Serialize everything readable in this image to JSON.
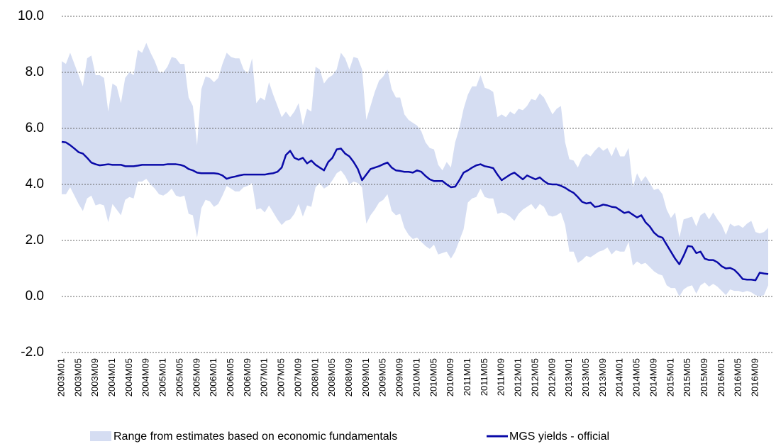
{
  "chart_data": {
    "type": "line",
    "categories": [
      "2003M01",
      null,
      null,
      null,
      "2003M05",
      null,
      null,
      null,
      "2003M09",
      null,
      null,
      null,
      "2004M01",
      null,
      null,
      null,
      "2004M05",
      null,
      null,
      null,
      "2004M09",
      null,
      null,
      null,
      "2005M01",
      null,
      null,
      null,
      "2005M05",
      null,
      null,
      null,
      "2005M09",
      null,
      null,
      null,
      "2006M01",
      null,
      null,
      null,
      "2006M05",
      null,
      null,
      null,
      "2006M09",
      null,
      null,
      null,
      "2007M01",
      null,
      null,
      null,
      "2007M05",
      null,
      null,
      null,
      "2007M09",
      null,
      null,
      null,
      "2008M01",
      null,
      null,
      null,
      "2008M05",
      null,
      null,
      null,
      "2008M09",
      null,
      null,
      null,
      "2009M01",
      null,
      null,
      null,
      "2009M05",
      null,
      null,
      null,
      "2009M09",
      null,
      null,
      null,
      "2010M01",
      null,
      null,
      null,
      "2010M05",
      null,
      null,
      null,
      "2010M09",
      null,
      null,
      null,
      "2011M01",
      null,
      null,
      null,
      "2011M05",
      null,
      null,
      null,
      "2011M09",
      null,
      null,
      null,
      "2012M01",
      null,
      null,
      null,
      "2012M05",
      null,
      null,
      null,
      "2012M09",
      null,
      null,
      null,
      "2013M01",
      null,
      null,
      null,
      "2013M05",
      null,
      null,
      null,
      "2013M09",
      null,
      null,
      null,
      "2014M01",
      null,
      null,
      null,
      "2014M05",
      null,
      null,
      null,
      "2014M09",
      null,
      null,
      null,
      "2015M01",
      null,
      null,
      null,
      "2015M05",
      null,
      null,
      null,
      "2015M09",
      null,
      null,
      null,
      "2016M01",
      null,
      null,
      null,
      "2016M05",
      null,
      null,
      null,
      "2016M09",
      null,
      null,
      null
    ],
    "series": [
      {
        "name": "Range from estimates based on economic fundamentals",
        "color": "#d5ddf2",
        "upper": [
          8.4,
          8.3,
          8.7,
          8.3,
          7.9,
          7.5,
          8.5,
          8.6,
          7.9,
          7.9,
          7.8,
          6.6,
          7.6,
          7.5,
          6.9,
          7.8,
          8.0,
          7.9,
          8.8,
          8.7,
          9.05,
          8.7,
          8.4,
          8.0,
          8.0,
          8.2,
          8.55,
          8.5,
          8.3,
          8.3,
          7.1,
          6.8,
          5.4,
          7.4,
          7.85,
          7.8,
          7.65,
          7.8,
          8.3,
          8.7,
          8.55,
          8.5,
          8.5,
          8.1,
          7.95,
          8.5,
          6.9,
          7.1,
          7.0,
          7.65,
          7.2,
          6.8,
          6.4,
          6.6,
          6.4,
          6.6,
          6.9,
          6.1,
          6.7,
          6.6,
          8.2,
          8.1,
          7.6,
          7.8,
          7.9,
          8.1,
          8.7,
          8.5,
          8.1,
          8.55,
          8.5,
          8.1,
          6.3,
          6.8,
          7.3,
          7.7,
          7.85,
          8.1,
          7.4,
          7.1,
          7.1,
          6.5,
          6.3,
          6.2,
          6.1,
          5.9,
          5.5,
          5.3,
          5.25,
          4.7,
          4.5,
          4.8,
          4.6,
          5.5,
          6.0,
          6.7,
          7.2,
          7.5,
          7.5,
          7.9,
          7.45,
          7.4,
          7.3,
          6.4,
          6.5,
          6.4,
          6.6,
          6.5,
          6.7,
          6.65,
          6.8,
          7.05,
          7.0,
          7.25,
          7.1,
          6.8,
          6.5,
          6.7,
          6.8,
          5.5,
          4.9,
          4.85,
          4.6,
          4.95,
          5.1,
          5.0,
          5.2,
          5.35,
          5.2,
          5.3,
          5.0,
          5.35,
          5.0,
          5.0,
          5.3,
          3.9,
          4.4,
          4.1,
          4.3,
          4.05,
          3.8,
          3.85,
          3.65,
          3.1,
          2.8,
          3.0,
          2.1,
          2.75,
          2.8,
          2.85,
          2.5,
          2.9,
          3.0,
          2.75,
          3.0,
          2.75,
          2.55,
          2.2,
          2.6,
          2.5,
          2.55,
          2.45,
          2.6,
          2.7,
          2.3,
          2.25,
          2.3,
          2.45
        ],
        "lower": [
          3.65,
          3.65,
          3.9,
          3.6,
          3.3,
          3.05,
          3.5,
          3.6,
          3.25,
          3.3,
          3.25,
          2.65,
          3.3,
          3.1,
          2.9,
          3.45,
          3.55,
          3.5,
          4.1,
          4.1,
          4.2,
          4.0,
          3.85,
          3.65,
          3.6,
          3.7,
          3.85,
          3.6,
          3.55,
          3.6,
          2.95,
          2.9,
          2.1,
          3.15,
          3.45,
          3.4,
          3.2,
          3.3,
          3.6,
          3.95,
          3.85,
          3.75,
          3.75,
          3.9,
          3.95,
          4.05,
          3.1,
          3.15,
          3.0,
          3.25,
          3.0,
          2.75,
          2.55,
          2.7,
          2.75,
          2.95,
          3.3,
          2.85,
          3.25,
          3.2,
          3.9,
          4.05,
          3.85,
          3.95,
          4.15,
          4.4,
          4.5,
          4.3,
          4.0,
          4.1,
          4.05,
          3.9,
          2.6,
          2.9,
          3.1,
          3.35,
          3.45,
          3.65,
          3.05,
          2.9,
          2.95,
          2.45,
          2.2,
          2.05,
          2.1,
          1.95,
          1.8,
          1.7,
          1.85,
          1.5,
          1.55,
          1.6,
          1.35,
          1.6,
          2.0,
          2.4,
          3.35,
          3.5,
          3.55,
          3.85,
          3.55,
          3.5,
          3.5,
          2.95,
          3.0,
          2.95,
          2.85,
          2.7,
          2.95,
          3.1,
          3.2,
          3.3,
          3.1,
          3.3,
          3.2,
          2.9,
          2.85,
          2.9,
          3.0,
          2.55,
          1.6,
          1.6,
          1.2,
          1.3,
          1.45,
          1.4,
          1.5,
          1.6,
          1.65,
          1.75,
          1.5,
          1.65,
          1.6,
          1.6,
          1.95,
          1.1,
          1.25,
          1.15,
          1.2,
          1.05,
          0.9,
          0.8,
          0.75,
          0.4,
          0.3,
          0.3,
          0.0,
          0.25,
          0.35,
          0.4,
          0.1,
          0.4,
          0.5,
          0.35,
          0.45,
          0.35,
          0.2,
          0.05,
          0.25,
          0.2,
          0.2,
          0.15,
          0.2,
          0.15,
          0.05,
          0.0,
          0.05,
          0.4
        ]
      },
      {
        "name": "MGS yields - official",
        "color": "#0a0aa8",
        "values": [
          5.52,
          5.5,
          5.4,
          5.28,
          5.15,
          5.1,
          4.95,
          4.78,
          4.72,
          4.68,
          4.7,
          4.72,
          4.7,
          4.7,
          4.7,
          4.65,
          4.65,
          4.65,
          4.67,
          4.7,
          4.7,
          4.7,
          4.7,
          4.7,
          4.7,
          4.72,
          4.72,
          4.72,
          4.7,
          4.65,
          4.55,
          4.5,
          4.42,
          4.4,
          4.4,
          4.4,
          4.4,
          4.38,
          4.32,
          4.2,
          4.25,
          4.28,
          4.32,
          4.35,
          4.35,
          4.35,
          4.35,
          4.35,
          4.35,
          4.38,
          4.4,
          4.45,
          4.6,
          5.05,
          5.2,
          4.95,
          4.88,
          4.95,
          4.75,
          4.85,
          4.7,
          4.6,
          4.5,
          4.8,
          4.95,
          5.25,
          5.28,
          5.1,
          5.0,
          4.8,
          4.55,
          4.15,
          4.35,
          4.55,
          4.6,
          4.65,
          4.72,
          4.78,
          4.6,
          4.5,
          4.48,
          4.45,
          4.45,
          4.42,
          4.5,
          4.45,
          4.3,
          4.18,
          4.12,
          4.12,
          4.12,
          4.0,
          3.9,
          3.92,
          4.15,
          4.42,
          4.5,
          4.6,
          4.68,
          4.72,
          4.65,
          4.62,
          4.58,
          4.35,
          4.15,
          4.25,
          4.35,
          4.42,
          4.3,
          4.18,
          4.32,
          4.25,
          4.18,
          4.25,
          4.12,
          4.02,
          4.0,
          4.0,
          3.95,
          3.88,
          3.78,
          3.7,
          3.55,
          3.38,
          3.32,
          3.35,
          3.2,
          3.22,
          3.28,
          3.25,
          3.2,
          3.18,
          3.08,
          2.98,
          3.02,
          2.92,
          2.82,
          2.9,
          2.65,
          2.5,
          2.28,
          2.15,
          2.1,
          1.85,
          1.6,
          1.35,
          1.15,
          1.45,
          1.8,
          1.78,
          1.55,
          1.6,
          1.35,
          1.3,
          1.3,
          1.22,
          1.08,
          1.0,
          1.02,
          0.95,
          0.8,
          0.62,
          0.6,
          0.6,
          0.58,
          0.85,
          0.82,
          0.8
        ]
      }
    ],
    "ylim": [
      -2,
      10
    ],
    "yticks": [
      {
        "value": -2,
        "label": "-2.0"
      },
      {
        "value": 0,
        "label": "0.0"
      },
      {
        "value": 2,
        "label": "2.0"
      },
      {
        "value": 4,
        "label": "4.0"
      },
      {
        "value": 6,
        "label": "6.0"
      },
      {
        "value": 8,
        "label": "8.0"
      },
      {
        "value": 10,
        "label": "10.0"
      }
    ],
    "grid": true
  }
}
